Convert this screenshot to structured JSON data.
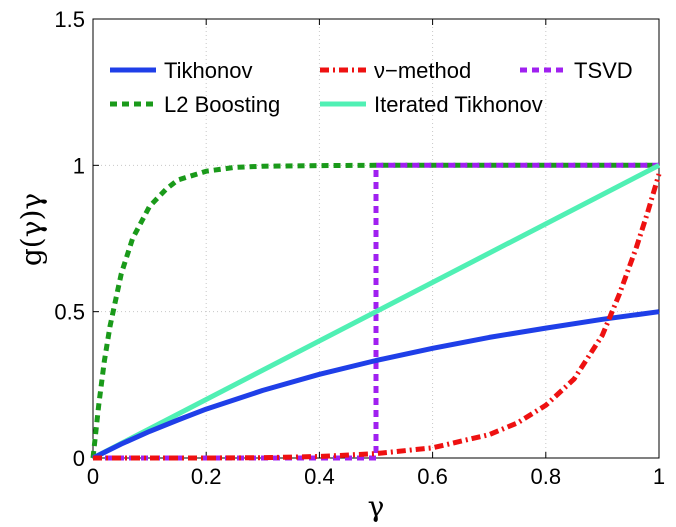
{
  "chart_data": {
    "type": "line",
    "title": "",
    "xlabel": "γ",
    "ylabel": "g(γ)γ",
    "xlim": [
      0,
      1
    ],
    "ylim": [
      0,
      1.5
    ],
    "xticks": [
      0,
      0.2,
      0.4,
      0.6,
      0.8,
      1
    ],
    "yticks": [
      0,
      0.5,
      1,
      1.5
    ],
    "xtick_labels": [
      "0",
      "0.2",
      "0.4",
      "0.6",
      "0.8",
      "1"
    ],
    "ytick_labels": [
      "0",
      "0.5",
      "1",
      "1.5"
    ],
    "grid": true,
    "legend_position": "top",
    "series": [
      {
        "name": "Tikhonov",
        "color": "#1f3fe8",
        "style": "solid",
        "x": [
          0,
          0.05,
          0.1,
          0.15,
          0.2,
          0.3,
          0.4,
          0.5,
          0.6,
          0.7,
          0.8,
          0.9,
          1.0
        ],
        "y": [
          0,
          0.048,
          0.091,
          0.13,
          0.167,
          0.231,
          0.286,
          0.333,
          0.375,
          0.412,
          0.444,
          0.474,
          0.5
        ]
      },
      {
        "name": "ν−method",
        "color": "#ee1111",
        "style": "dashdot",
        "x": [
          0,
          0.1,
          0.2,
          0.3,
          0.4,
          0.5,
          0.6,
          0.7,
          0.75,
          0.8,
          0.85,
          0.9,
          0.93,
          0.96,
          0.98,
          1.0
        ],
        "y": [
          0,
          0,
          0,
          0.001,
          0.005,
          0.015,
          0.035,
          0.08,
          0.12,
          0.18,
          0.27,
          0.42,
          0.56,
          0.72,
          0.84,
          0.97
        ]
      },
      {
        "name": "TSVD",
        "color": "#a020f0",
        "style": "dashed",
        "x": [
          0,
          0.5,
          0.5,
          1.0
        ],
        "y": [
          0,
          0,
          1,
          1
        ]
      },
      {
        "name": "L2 Boosting",
        "color": "#1a9a1a",
        "style": "dashed",
        "x": [
          0,
          0.01,
          0.02,
          0.03,
          0.05,
          0.07,
          0.1,
          0.13,
          0.15,
          0.2,
          0.25,
          0.3,
          0.4,
          0.5,
          0.6,
          0.7,
          0.8,
          0.9,
          1.0
        ],
        "y": [
          0,
          0.18,
          0.33,
          0.45,
          0.63,
          0.75,
          0.86,
          0.92,
          0.95,
          0.98,
          0.993,
          0.997,
          0.999,
          1,
          1,
          1,
          1,
          1,
          1
        ]
      },
      {
        "name": "Iterated Tikhonov",
        "color": "#50f0b4",
        "style": "solid",
        "x": [
          0,
          1
        ],
        "y": [
          0,
          1
        ]
      }
    ]
  }
}
